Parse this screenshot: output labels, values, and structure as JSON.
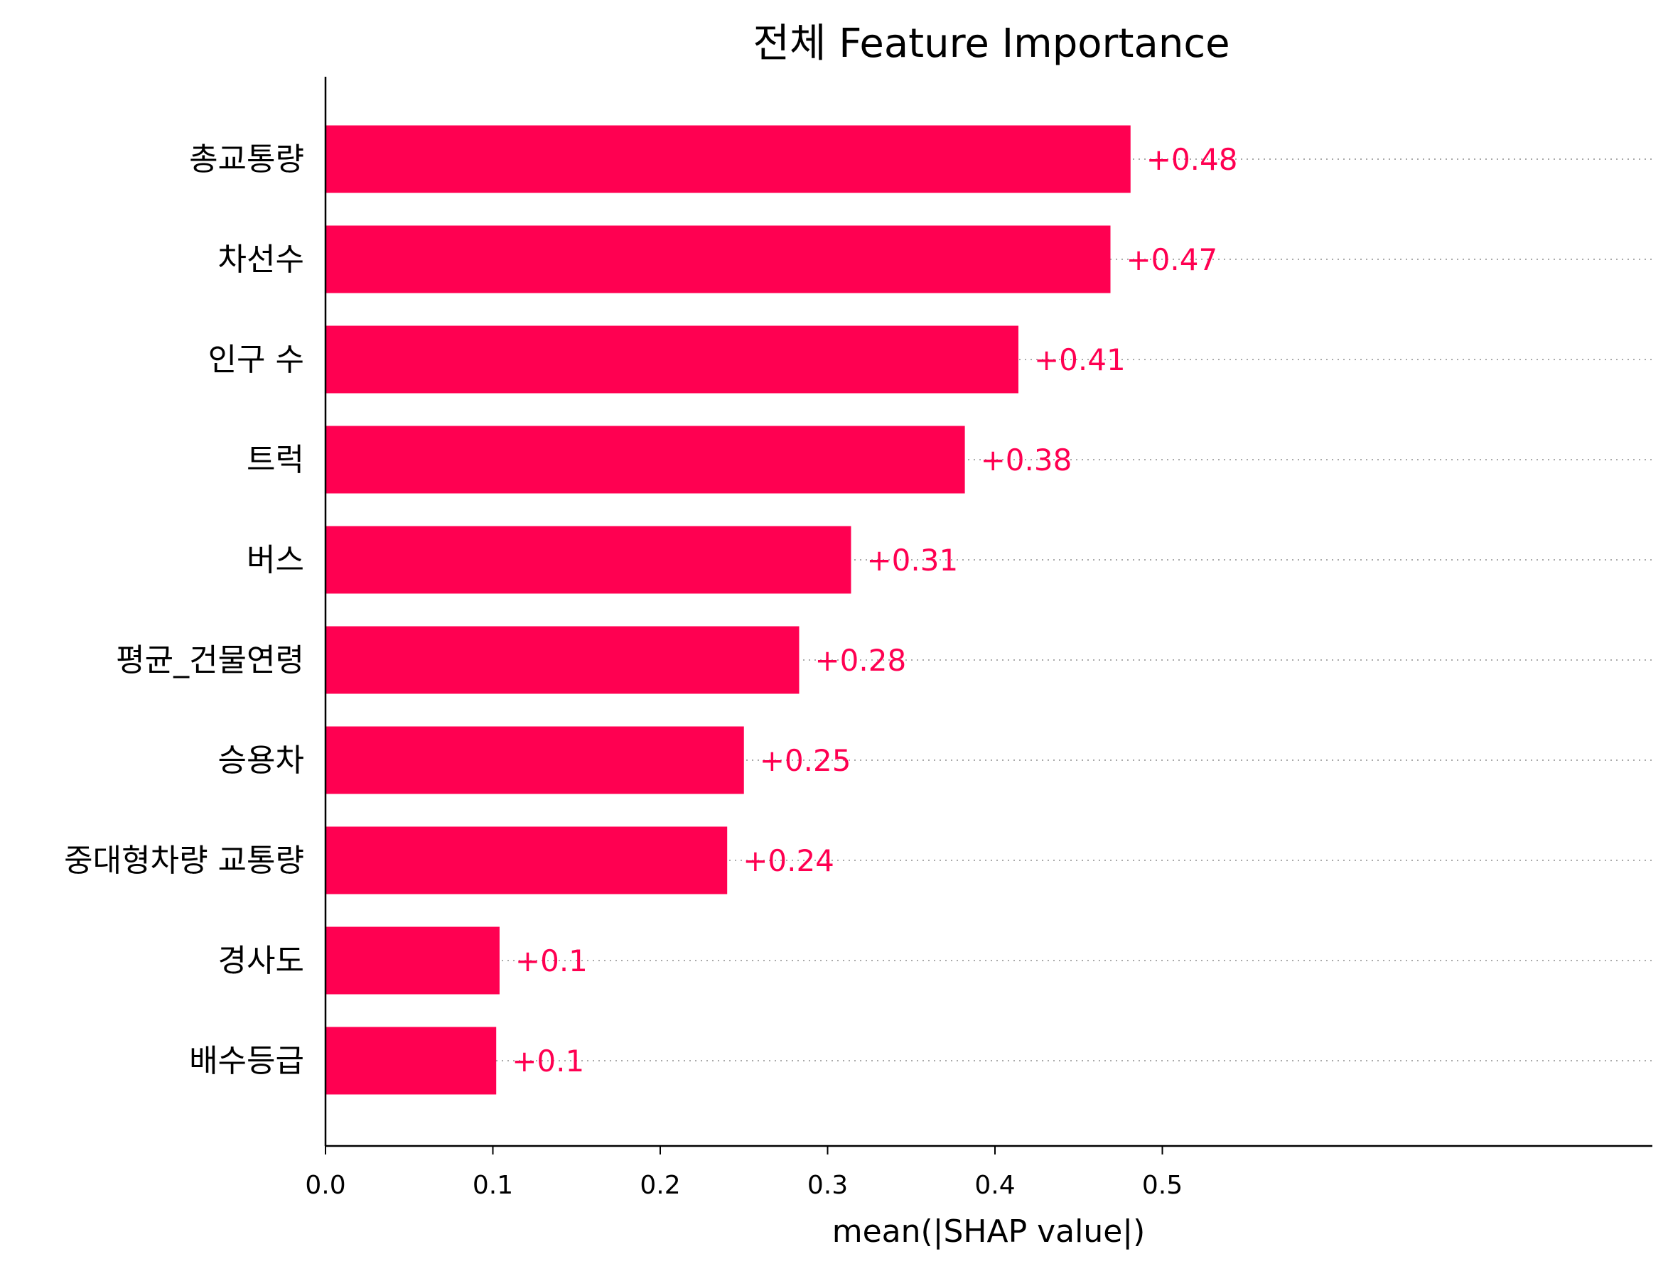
{
  "chart_data": {
    "type": "bar",
    "orientation": "horizontal",
    "title": "전체 Feature Importance",
    "xlabel": "mean(|SHAP value|)",
    "ylabel": "",
    "xlim": [
      0,
      0.53
    ],
    "xticks": [
      "0.0",
      "0.1",
      "0.2",
      "0.3",
      "0.4",
      "0.5"
    ],
    "categories": [
      "총교통량",
      "차선수",
      "인구 수",
      "트럭",
      "버스",
      "평균_건물연령",
      "승용차",
      "중대형차량 교통량",
      "경사도",
      "배수등급"
    ],
    "values": [
      0.481,
      0.469,
      0.414,
      0.382,
      0.314,
      0.283,
      0.25,
      0.24,
      0.104,
      0.102
    ],
    "value_labels": [
      "+0.48",
      "+0.47",
      "+0.41",
      "+0.38",
      "+0.31",
      "+0.28",
      "+0.25",
      "+0.24",
      "+0.1",
      "+0.1"
    ],
    "bar_color": "#ff0051",
    "label_color": "#ff0051",
    "grid": false
  }
}
